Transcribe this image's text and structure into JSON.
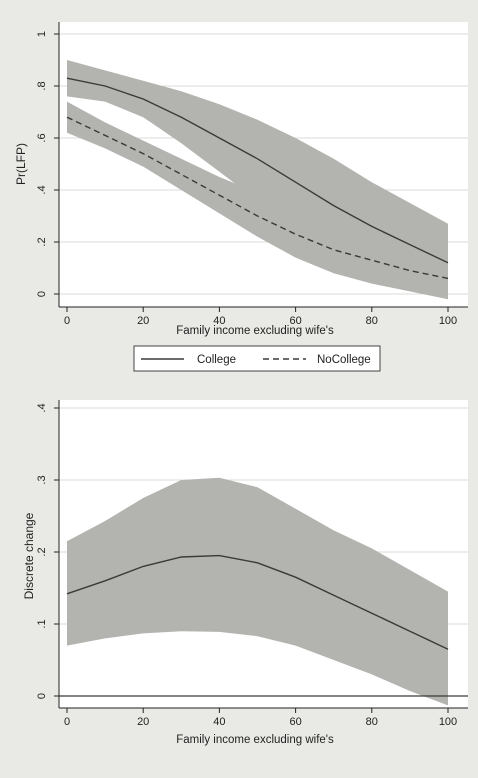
{
  "chart_data": [
    {
      "type": "line",
      "title": "",
      "xlabel": "Family income excluding wife's",
      "ylabel": "Pr(LFP)",
      "xlim": [
        0,
        100
      ],
      "ylim": [
        0,
        1
      ],
      "x_ticks": [
        "0",
        "20",
        "40",
        "60",
        "80",
        "100"
      ],
      "y_ticks": [
        "0",
        ".2",
        ".4",
        ".6",
        ".8",
        "1"
      ],
      "grid": true,
      "legend_placement": "bottom",
      "x": [
        0,
        10,
        20,
        30,
        40,
        50,
        60,
        70,
        80,
        90,
        100
      ],
      "series": [
        {
          "name": "College",
          "style": "solid",
          "values": [
            0.83,
            0.8,
            0.75,
            0.68,
            0.6,
            0.52,
            0.43,
            0.34,
            0.26,
            0.19,
            0.12
          ],
          "ci_lower": [
            0.76,
            0.74,
            0.68,
            0.58,
            0.47,
            0.36,
            0.25,
            0.15,
            0.08,
            0.02,
            -0.02
          ],
          "ci_upper": [
            0.9,
            0.86,
            0.82,
            0.78,
            0.73,
            0.67,
            0.6,
            0.52,
            0.43,
            0.35,
            0.27
          ]
        },
        {
          "name": "NoCollege",
          "style": "dashed",
          "values": [
            0.68,
            0.61,
            0.54,
            0.46,
            0.38,
            0.3,
            0.23,
            0.17,
            0.13,
            0.09,
            0.06
          ],
          "ci_lower": [
            0.62,
            0.56,
            0.49,
            0.4,
            0.31,
            0.22,
            0.14,
            0.08,
            0.04,
            0.01,
            -0.02
          ],
          "ci_upper": [
            0.74,
            0.66,
            0.59,
            0.52,
            0.45,
            0.39,
            0.33,
            0.27,
            0.22,
            0.18,
            0.14
          ]
        }
      ]
    },
    {
      "type": "line",
      "title": "",
      "xlabel": "Family income excluding wife's",
      "ylabel": "Discrete change",
      "xlim": [
        0,
        100
      ],
      "ylim": [
        0,
        0.4
      ],
      "x_ticks": [
        "0",
        "20",
        "40",
        "60",
        "80",
        "100"
      ],
      "y_ticks": [
        "0",
        ".1",
        ".2",
        ".3",
        ".4"
      ],
      "grid": true,
      "x": [
        0,
        10,
        20,
        30,
        40,
        50,
        60,
        70,
        80,
        90,
        100
      ],
      "series": [
        {
          "style": "solid",
          "values": [
            0.142,
            0.16,
            0.18,
            0.193,
            0.195,
            0.185,
            0.165,
            0.14,
            0.115,
            0.09,
            0.065
          ],
          "ci_lower": [
            0.07,
            0.08,
            0.087,
            0.09,
            0.089,
            0.083,
            0.07,
            0.05,
            0.03,
            0.007,
            -0.013
          ],
          "ci_upper": [
            0.215,
            0.243,
            0.275,
            0.3,
            0.303,
            0.29,
            0.26,
            0.23,
            0.205,
            0.175,
            0.145
          ]
        }
      ]
    }
  ]
}
